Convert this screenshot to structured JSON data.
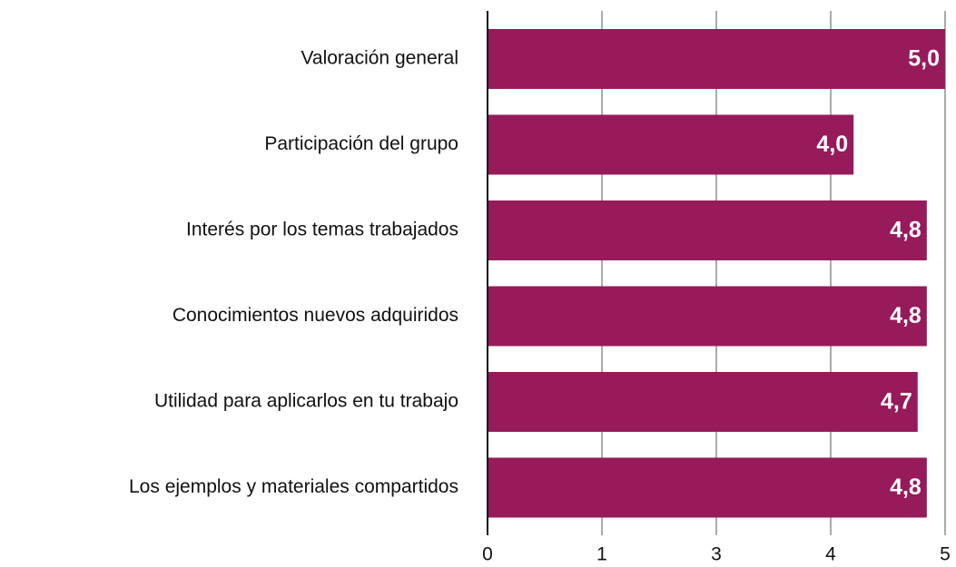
{
  "chart_data": {
    "type": "hbar",
    "categories": [
      "Valoración general",
      "Participación del grupo",
      "Interés por los temas trabajados",
      "Conocimientos nuevos adquiridos",
      "Utilidad para aplicarlos en tu trabajo",
      "Los ejemplos y materiales compartidos"
    ],
    "values": [
      5.0,
      4.0,
      4.8,
      4.8,
      4.7,
      4.8
    ],
    "value_labels": [
      "5,0",
      "4,0",
      "4,8",
      "4,8",
      "4,7",
      "4,8"
    ],
    "color": "#971a5b",
    "xlim": [
      0,
      5
    ],
    "xticks": [
      0,
      {
        "value": 1.25,
        "label": "1"
      },
      {
        "value": 2.5,
        "label": "3"
      },
      {
        "value": 3.75,
        "label": "4"
      },
      5
    ],
    "grid": true
  }
}
